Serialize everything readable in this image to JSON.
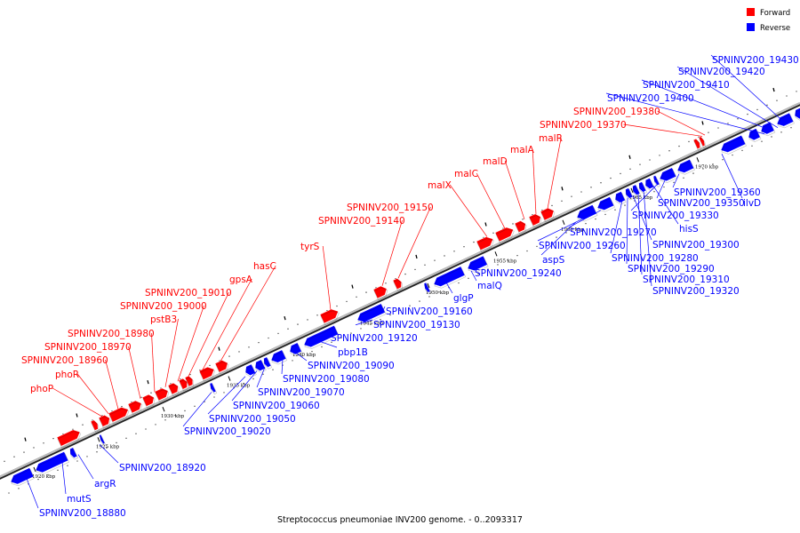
{
  "caption": "Streptococcus pneumoniae INV200 genome. - 0..2093317",
  "legend": [
    {
      "label": "Forward",
      "color": "#ff0000"
    },
    {
      "label": "Reverse",
      "color": "#0000ff"
    }
  ],
  "colors": {
    "forward": "#ff0000",
    "reverse": "#0000ff",
    "backbone": "#666666"
  },
  "ticks": [
    "1920 kbp",
    "1925 kbp",
    "1930 kbp",
    "1935 kbp",
    "1940 kbp",
    "1945 kbp",
    "1950 kbp",
    "1955 kbp",
    "1960 kbp",
    "1965 kbp",
    "1970 kbp"
  ],
  "forward_labels": [
    "phoP",
    "phoR",
    "SPNINV200_18960",
    "SPNINV200_18970",
    "SPNINV200_18980",
    "pstB3",
    "SPNINV200_19000",
    "SPNINV200_19010",
    "gpsA",
    "hasC",
    "tyrS",
    "SPNINV200_19140",
    "SPNINV200_19150",
    "malX",
    "malC",
    "malD",
    "malA",
    "malR",
    "SPNINV200_19370",
    "SPNINV200_19380"
  ],
  "reverse_labels": [
    "SPNINV200_18880",
    "mutS",
    "argR",
    "SPNINV200_18920",
    "SPNINV200_19020",
    "SPNINV200_19050",
    "SPNINV200_19060",
    "SPNINV200_19070",
    "SPNINV200_19080",
    "SPNINV200_19090",
    "pbp1B",
    "SPNINV200_19120",
    "SPNINV200_19130",
    "SPNINV200_19160",
    "glgP",
    "malQ",
    "SPNINV200_19240",
    "aspS",
    "SPNINV200_19260",
    "SPNINV200_19270",
    "SPNINV200_19280",
    "SPNINV200_19290",
    "SPNINV200_19300",
    "SPNINV200_19310",
    "SPNINV200_19320",
    "hisS",
    "SPNINV200_19330",
    "SPNINV200_19350",
    "SPNINV200_19360",
    "ilvD",
    "SPNINV200_19400",
    "SPNINV200_19410",
    "SPNINV200_19420",
    "SPNINV200_19430"
  ]
}
